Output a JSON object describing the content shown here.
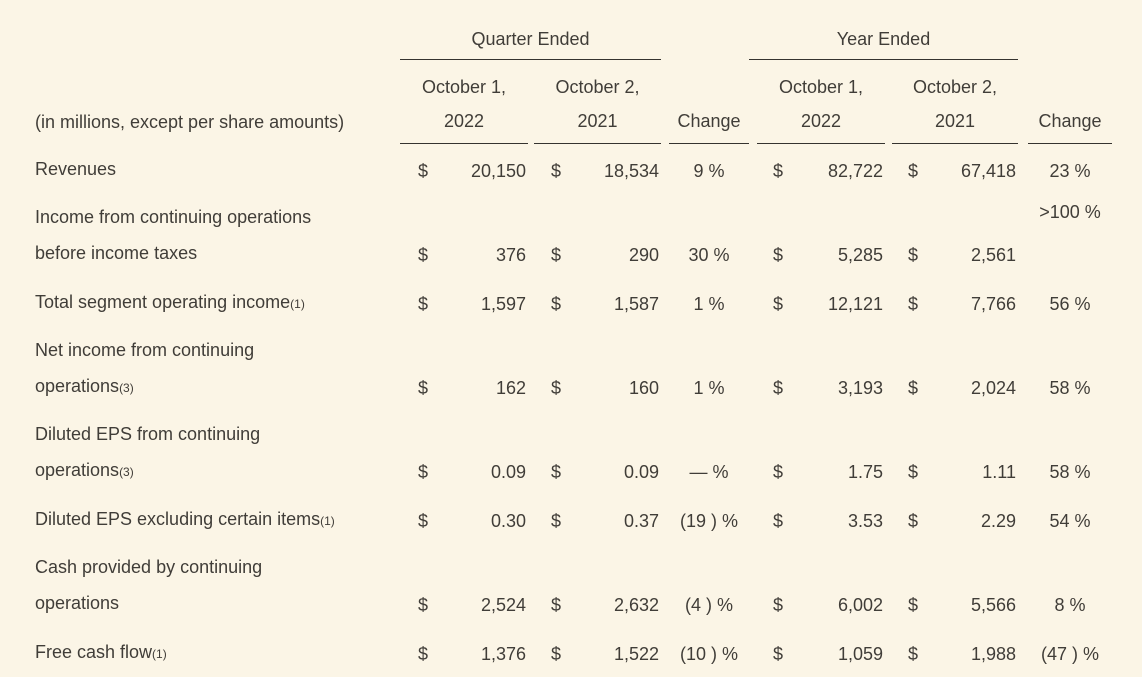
{
  "page": {
    "background_color": "#FBF5E6",
    "text_color": "#403D38",
    "rule_color": "#35332F"
  },
  "header": {
    "note": "(in millions, except per share amounts)",
    "groups": [
      {
        "label": "Quarter Ended"
      },
      {
        "label": "Year Ended"
      }
    ],
    "columns": [
      {
        "line1": "October 1,",
        "line2": "2022"
      },
      {
        "line1": "October 2,",
        "line2": "2021"
      },
      {
        "label": "Change"
      },
      {
        "line1": "October 1,",
        "line2": "2022"
      },
      {
        "line1": "October 2,",
        "line2": "2021"
      },
      {
        "label": "Change"
      }
    ]
  },
  "table": {
    "rows": [
      {
        "l1": "Revenues",
        "l1fn": "",
        "l2": "",
        "l2fn": "",
        "q1d": "$",
        "q1": "20,150",
        "q2d": "$",
        "q2": "18,534",
        "qchg": "9 %",
        "y1d": "$",
        "y1": "82,722",
        "y2d": "$",
        "y2": "67,418",
        "ychg": "23 %"
      },
      {
        "l1": "Income from continuing operations",
        "l1fn": "",
        "l2": "before income taxes",
        "l2fn": "",
        "q1d": "$",
        "q1": "376",
        "q2d": "$",
        "q2": "290",
        "qchg": "30 %",
        "y1d": "$",
        "y1": "5,285",
        "y2d": "$",
        "y2": "2,561",
        "ychg": ">100 %"
      },
      {
        "l1": "Total segment operating income",
        "l1fn": "(1)",
        "l2": "",
        "l2fn": "",
        "q1d": "$",
        "q1": "1,597",
        "q2d": "$",
        "q2": "1,587",
        "qchg": "1 %",
        "y1d": "$",
        "y1": "12,121",
        "y2d": "$",
        "y2": "7,766",
        "ychg": "56 %"
      },
      {
        "l1": "Net income from continuing",
        "l1fn": "",
        "l2": "operations",
        "l2fn": "(3)",
        "q1d": "$",
        "q1": "162",
        "q2d": "$",
        "q2": "160",
        "qchg": "1 %",
        "y1d": "$",
        "y1": "3,193",
        "y2d": "$",
        "y2": "2,024",
        "ychg": "58 %"
      },
      {
        "l1": "Diluted EPS from continuing",
        "l1fn": "",
        "l2": "operations",
        "l2fn": "(3)",
        "q1d": "$",
        "q1": "0.09",
        "q2d": "$",
        "q2": "0.09",
        "qchg": "— %",
        "y1d": "$",
        "y1": "1.75",
        "y2d": "$",
        "y2": "1.11",
        "ychg": "58 %"
      },
      {
        "l1": "Diluted EPS excluding certain items",
        "l1fn": "(1)",
        "l2": "",
        "l2fn": "",
        "q1d": "$",
        "q1": "0.30",
        "q2d": "$",
        "q2": "0.37",
        "qchg": "(19 ) %",
        "y1d": "$",
        "y1": "3.53",
        "y2d": "$",
        "y2": "2.29",
        "ychg": "54 %"
      },
      {
        "l1": "Cash provided by continuing",
        "l1fn": "",
        "l2": "operations",
        "l2fn": "",
        "q1d": "$",
        "q1": "2,524",
        "q2d": "$",
        "q2": "2,632",
        "qchg": "(4 ) %",
        "y1d": "$",
        "y1": "6,002",
        "y2d": "$",
        "y2": "5,566",
        "ychg": "8 %"
      },
      {
        "l1": "Free cash flow",
        "l1fn": "(1)",
        "l2": "",
        "l2fn": "",
        "q1d": "$",
        "q1": "1,376",
        "q2d": "$",
        "q2": "1,522",
        "qchg": "(10 ) %",
        "y1d": "$",
        "y1": "1,059",
        "y2d": "$",
        "y2": "1,988",
        "ychg": "(47 ) %"
      }
    ]
  }
}
